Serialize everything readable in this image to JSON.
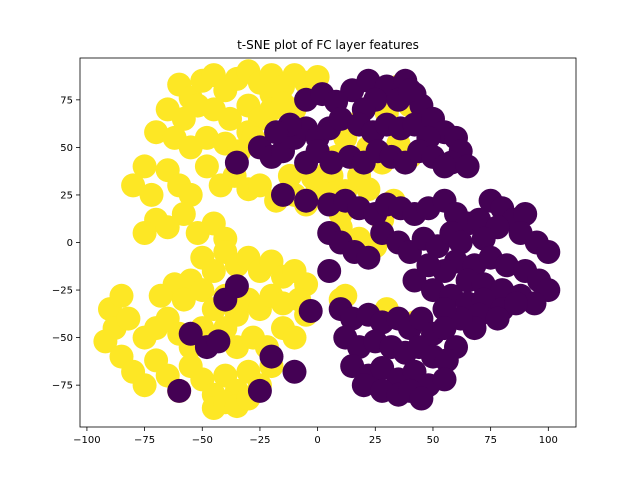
{
  "chart_data": {
    "type": "scatter",
    "title": "t-SNE plot of FC layer features",
    "xlabel": "",
    "ylabel": "",
    "xlim": [
      -103,
      112
    ],
    "ylim": [
      -97,
      97
    ],
    "xticks": [
      -100,
      -75,
      -50,
      -25,
      0,
      25,
      50,
      75,
      100
    ],
    "yticks": [
      -75,
      -50,
      -25,
      0,
      25,
      50,
      75
    ],
    "xtick_labels": [
      "−100",
      "−75",
      "−50",
      "−25",
      "0",
      "25",
      "50",
      "75",
      "100"
    ],
    "ytick_labels": [
      "−75",
      "−50",
      "−25",
      "0",
      "25",
      "50",
      "75"
    ],
    "grid": false,
    "legend": "none",
    "series": [
      {
        "color": "#fde725",
        "values": [
          [
            -60,
            83
          ],
          [
            -55,
            76
          ],
          [
            -50,
            85
          ],
          [
            -45,
            88
          ],
          [
            -40,
            80
          ],
          [
            -35,
            86
          ],
          [
            -30,
            90
          ],
          [
            -25,
            84
          ],
          [
            -20,
            88
          ],
          [
            -15,
            82
          ],
          [
            -10,
            88
          ],
          [
            -5,
            84
          ],
          [
            0,
            87
          ],
          [
            -20,
            78
          ],
          [
            -65,
            70
          ],
          [
            -58,
            65
          ],
          [
            -52,
            72
          ],
          [
            -45,
            70
          ],
          [
            -38,
            65
          ],
          [
            -30,
            72
          ],
          [
            -25,
            65
          ],
          [
            -20,
            70
          ],
          [
            -15,
            73
          ],
          [
            -10,
            70
          ],
          [
            -30,
            58
          ],
          [
            -70,
            58
          ],
          [
            -62,
            55
          ],
          [
            -55,
            50
          ],
          [
            -48,
            55
          ],
          [
            -40,
            52
          ],
          [
            -34,
            48
          ],
          [
            -28,
            55
          ],
          [
            -75,
            40
          ],
          [
            -80,
            30
          ],
          [
            -72,
            25
          ],
          [
            -65,
            38
          ],
          [
            -60,
            30
          ],
          [
            -55,
            25
          ],
          [
            -48,
            40
          ],
          [
            -42,
            30
          ],
          [
            -36,
            35
          ],
          [
            -30,
            28
          ],
          [
            -25,
            30
          ],
          [
            -18,
            22
          ],
          [
            -10,
            25
          ],
          [
            -5,
            20
          ],
          [
            0,
            28
          ],
          [
            -2,
            34
          ],
          [
            -12,
            35
          ],
          [
            -70,
            12
          ],
          [
            -75,
            5
          ],
          [
            -65,
            8
          ],
          [
            -58,
            15
          ],
          [
            -52,
            5
          ],
          [
            -45,
            10
          ],
          [
            -40,
            2
          ],
          [
            -50,
            -8
          ],
          [
            -45,
            -15
          ],
          [
            -40,
            -5
          ],
          [
            -35,
            -12
          ],
          [
            -30,
            -8
          ],
          [
            -25,
            -15
          ],
          [
            -20,
            -10
          ],
          [
            -15,
            -18
          ],
          [
            -10,
            -15
          ],
          [
            -5,
            -22
          ],
          [
            -55,
            -20
          ],
          [
            -62,
            -22
          ],
          [
            -68,
            -28
          ],
          [
            -58,
            -30
          ],
          [
            -50,
            -25
          ],
          [
            -45,
            -35
          ],
          [
            -40,
            -28
          ],
          [
            -35,
            -38
          ],
          [
            -30,
            -30
          ],
          [
            -25,
            -35
          ],
          [
            -20,
            -28
          ],
          [
            -15,
            -32
          ],
          [
            -8,
            -30
          ],
          [
            -5,
            -38
          ],
          [
            -90,
            -35
          ],
          [
            -85,
            -28
          ],
          [
            -88,
            -45
          ],
          [
            -92,
            -52
          ],
          [
            -82,
            -40
          ],
          [
            -75,
            -50
          ],
          [
            -70,
            -45
          ],
          [
            -65,
            -40
          ],
          [
            -60,
            -48
          ],
          [
            -55,
            -55
          ],
          [
            -50,
            -45
          ],
          [
            -45,
            -52
          ],
          [
            -40,
            -45
          ],
          [
            -35,
            -55
          ],
          [
            -28,
            -50
          ],
          [
            -22,
            -55
          ],
          [
            -15,
            -45
          ],
          [
            -10,
            -50
          ],
          [
            -85,
            -60
          ],
          [
            -80,
            -68
          ],
          [
            -75,
            -75
          ],
          [
            -70,
            -62
          ],
          [
            -65,
            -70
          ],
          [
            -60,
            -78
          ],
          [
            -55,
            -65
          ],
          [
            -50,
            -72
          ],
          [
            -45,
            -80
          ],
          [
            -40,
            -70
          ],
          [
            -35,
            -78
          ],
          [
            -30,
            -68
          ],
          [
            -25,
            -75
          ],
          [
            -20,
            -65
          ],
          [
            -45,
            -87
          ],
          [
            -40,
            -84
          ],
          [
            -35,
            -86
          ],
          [
            -30,
            -82
          ],
          [
            10,
            -30
          ],
          [
            12,
            -28
          ],
          [
            30,
            -35
          ],
          [
            42,
            -42
          ],
          [
            35,
            82
          ],
          [
            28,
            78
          ],
          [
            40,
            72
          ],
          [
            30,
            68
          ],
          [
            15,
            62
          ],
          [
            12,
            55
          ],
          [
            22,
            50
          ],
          [
            35,
            52
          ],
          [
            28,
            42
          ],
          [
            40,
            45
          ],
          [
            8,
            45
          ],
          [
            18,
            35
          ],
          [
            22,
            28
          ],
          [
            12,
            27
          ],
          [
            33,
            22
          ],
          [
            28,
            12
          ],
          [
            10,
            8
          ],
          [
            18,
            2
          ],
          [
            25,
            -2
          ],
          [
            6,
            35
          ],
          [
            4,
            28
          ],
          [
            10,
            15
          ],
          [
            5,
            38
          ]
        ]
      },
      {
        "color": "#440154",
        "values": [
          [
            15,
            80
          ],
          [
            22,
            85
          ],
          [
            30,
            82
          ],
          [
            38,
            85
          ],
          [
            42,
            78
          ],
          [
            45,
            72
          ],
          [
            25,
            75
          ],
          [
            20,
            70
          ],
          [
            35,
            75
          ],
          [
            40,
            80
          ],
          [
            -5,
            75
          ],
          [
            2,
            78
          ],
          [
            8,
            74
          ],
          [
            -25,
            50
          ],
          [
            -20,
            45
          ],
          [
            -15,
            48
          ],
          [
            -10,
            55
          ],
          [
            -5,
            60
          ],
          [
            -12,
            62
          ],
          [
            -18,
            58
          ],
          [
            0,
            55
          ],
          [
            5,
            60
          ],
          [
            10,
            65
          ],
          [
            18,
            62
          ],
          [
            24,
            58
          ],
          [
            30,
            62
          ],
          [
            36,
            60
          ],
          [
            42,
            62
          ],
          [
            50,
            65
          ],
          [
            55,
            58
          ],
          [
            48,
            55
          ],
          [
            60,
            55
          ],
          [
            62,
            48
          ],
          [
            58,
            42
          ],
          [
            -5,
            42
          ],
          [
            0,
            48
          ],
          [
            6,
            42
          ],
          [
            14,
            45
          ],
          [
            20,
            42
          ],
          [
            26,
            48
          ],
          [
            32,
            45
          ],
          [
            38,
            42
          ],
          [
            44,
            48
          ],
          [
            50,
            45
          ],
          [
            55,
            40
          ],
          [
            65,
            40
          ],
          [
            5,
            20
          ],
          [
            12,
            22
          ],
          [
            18,
            18
          ],
          [
            25,
            15
          ],
          [
            30,
            20
          ],
          [
            36,
            18
          ],
          [
            42,
            15
          ],
          [
            48,
            18
          ],
          [
            55,
            22
          ],
          [
            60,
            15
          ],
          [
            65,
            10
          ],
          [
            70,
            12
          ],
          [
            5,
            5
          ],
          [
            10,
            0
          ],
          [
            16,
            -5
          ],
          [
            22,
            -8
          ],
          [
            28,
            5
          ],
          [
            35,
            0
          ],
          [
            40,
            -5
          ],
          [
            46,
            2
          ],
          [
            52,
            -2
          ],
          [
            58,
            5
          ],
          [
            62,
            0
          ],
          [
            75,
            22
          ],
          [
            80,
            18
          ],
          [
            85,
            12
          ],
          [
            90,
            15
          ],
          [
            78,
            8
          ],
          [
            88,
            5
          ],
          [
            95,
            0
          ],
          [
            100,
            -5
          ],
          [
            72,
            2
          ],
          [
            60,
            -10
          ],
          [
            68,
            -12
          ],
          [
            75,
            -8
          ],
          [
            82,
            -12
          ],
          [
            90,
            -15
          ],
          [
            96,
            -20
          ],
          [
            100,
            -25
          ],
          [
            65,
            -20
          ],
          [
            72,
            -22
          ],
          [
            80,
            -25
          ],
          [
            88,
            -28
          ],
          [
            94,
            -32
          ],
          [
            55,
            -15
          ],
          [
            48,
            -12
          ],
          [
            42,
            -20
          ],
          [
            50,
            -25
          ],
          [
            58,
            -28
          ],
          [
            65,
            -32
          ],
          [
            72,
            -30
          ],
          [
            80,
            -35
          ],
          [
            86,
            -32
          ],
          [
            70,
            -38
          ],
          [
            78,
            -40
          ],
          [
            68,
            -45
          ],
          [
            62,
            -40
          ],
          [
            55,
            -35
          ],
          [
            10,
            -35
          ],
          [
            15,
            -40
          ],
          [
            22,
            -38
          ],
          [
            28,
            -42
          ],
          [
            35,
            -40
          ],
          [
            40,
            -45
          ],
          [
            45,
            -40
          ],
          [
            50,
            -48
          ],
          [
            55,
            -45
          ],
          [
            60,
            -55
          ],
          [
            12,
            -50
          ],
          [
            18,
            -55
          ],
          [
            25,
            -52
          ],
          [
            32,
            -55
          ],
          [
            38,
            -58
          ],
          [
            44,
            -55
          ],
          [
            50,
            -60
          ],
          [
            56,
            -62
          ],
          [
            15,
            -65
          ],
          [
            22,
            -70
          ],
          [
            28,
            -66
          ],
          [
            35,
            -72
          ],
          [
            42,
            -68
          ],
          [
            48,
            -75
          ],
          [
            55,
            -72
          ],
          [
            20,
            -75
          ],
          [
            28,
            -78
          ],
          [
            35,
            -80
          ],
          [
            40,
            -78
          ],
          [
            45,
            -82
          ],
          [
            -48,
            -55
          ],
          [
            -43,
            -52
          ],
          [
            -40,
            -30
          ],
          [
            -35,
            -23
          ],
          [
            -20,
            -60
          ],
          [
            -10,
            -68
          ],
          [
            -25,
            -78
          ],
          [
            -60,
            -78
          ],
          [
            -55,
            -48
          ],
          [
            -3,
            -36
          ],
          [
            -15,
            25
          ],
          [
            -5,
            22
          ],
          [
            -35,
            42
          ],
          [
            5,
            -15
          ]
        ]
      }
    ]
  }
}
